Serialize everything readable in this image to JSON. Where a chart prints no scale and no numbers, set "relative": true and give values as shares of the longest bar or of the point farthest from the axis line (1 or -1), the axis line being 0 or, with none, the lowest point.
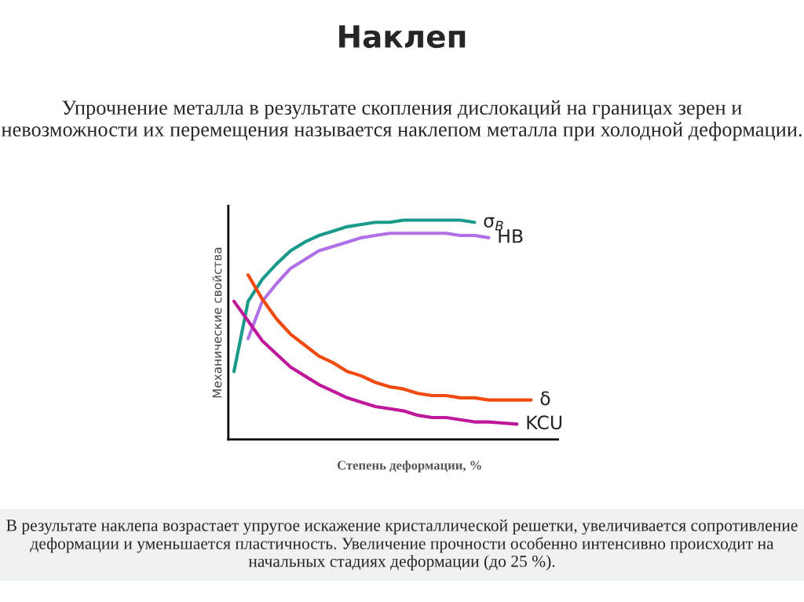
{
  "chart_data": {
    "type": "line",
    "relative": true,
    "title": "Наклеп",
    "subtitle": "Упрочнение металла в результате скопления дислокаций на границах зерен и невозможности их перемещения называется наклепом металла при холодной деформации.",
    "xlabel": "Степень деформации, %",
    "ylabel": "Механические свойства",
    "categories": [
      null,
      null,
      null,
      null,
      null,
      null,
      null,
      null,
      null,
      null,
      null,
      null,
      null,
      null,
      null,
      null,
      null,
      null,
      null,
      null,
      null,
      null
    ],
    "series": [
      {
        "name": "σ$_{B}$",
        "color": "#1a9a8a",
        "values": [
          0.31,
          0.63,
          0.73,
          0.8,
          0.86,
          0.9,
          0.93,
          0.95,
          0.97,
          0.98,
          0.99,
          0.99,
          1.0,
          1.0,
          1.0,
          1.0,
          1.0,
          0.99,
          null,
          null,
          null,
          null
        ]
      },
      {
        "name": "HB",
        "color": "#b070e8",
        "values": [
          null,
          0.46,
          0.63,
          0.71,
          0.78,
          0.82,
          0.86,
          0.88,
          0.9,
          0.92,
          0.93,
          0.94,
          0.94,
          0.94,
          0.94,
          0.94,
          0.93,
          0.93,
          0.92,
          null,
          null,
          null
        ]
      },
      {
        "name": "δ",
        "color": "#f04a10",
        "values": [
          null,
          0.75,
          0.64,
          0.55,
          0.48,
          0.43,
          0.38,
          0.35,
          0.31,
          0.29,
          0.26,
          0.24,
          0.23,
          0.21,
          0.2,
          0.2,
          0.19,
          0.19,
          0.18,
          0.18,
          0.18,
          0.18
        ]
      },
      {
        "name": "KCU",
        "color": "#c0189a",
        "values": [
          0.63,
          0.54,
          0.45,
          0.39,
          0.33,
          0.29,
          0.25,
          0.22,
          0.19,
          0.17,
          0.15,
          0.14,
          0.13,
          0.11,
          0.1,
          0.1,
          0.09,
          0.08,
          0.08,
          0.075,
          0.07,
          null
        ]
      }
    ],
    "annotations": [
      "В результате наклепа возрастает упругое искажение кристаллической решетки, увеличивается сопротивление деформации и уменьшается пластичность. Увеличение прочности особенно интенсивно происходит на начальных стадиях деформации (до 25 %)."
    ]
  }
}
